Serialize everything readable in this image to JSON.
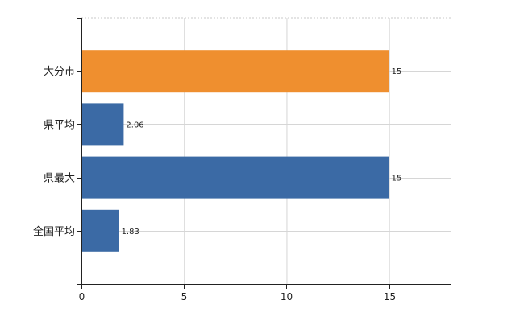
{
  "chart_data": {
    "type": "bar",
    "orientation": "horizontal",
    "categories": [
      "大分市",
      "県平均",
      "県最大",
      "全国平均"
    ],
    "values": [
      15,
      2.06,
      15,
      1.83
    ],
    "data_labels": [
      "15",
      "2.06",
      "15",
      "1.83"
    ],
    "bar_colors": [
      "#ef8f2f",
      "#3b6aa5",
      "#3b6aa5",
      "#3b6aa5"
    ],
    "xlim": [
      0,
      18
    ],
    "xticks": [
      0,
      5,
      10,
      15
    ],
    "xtick_labels": [
      "0",
      "5",
      "10",
      "15"
    ],
    "title": "",
    "xlabel": "",
    "ylabel": "",
    "grid": true,
    "legend": "none"
  }
}
